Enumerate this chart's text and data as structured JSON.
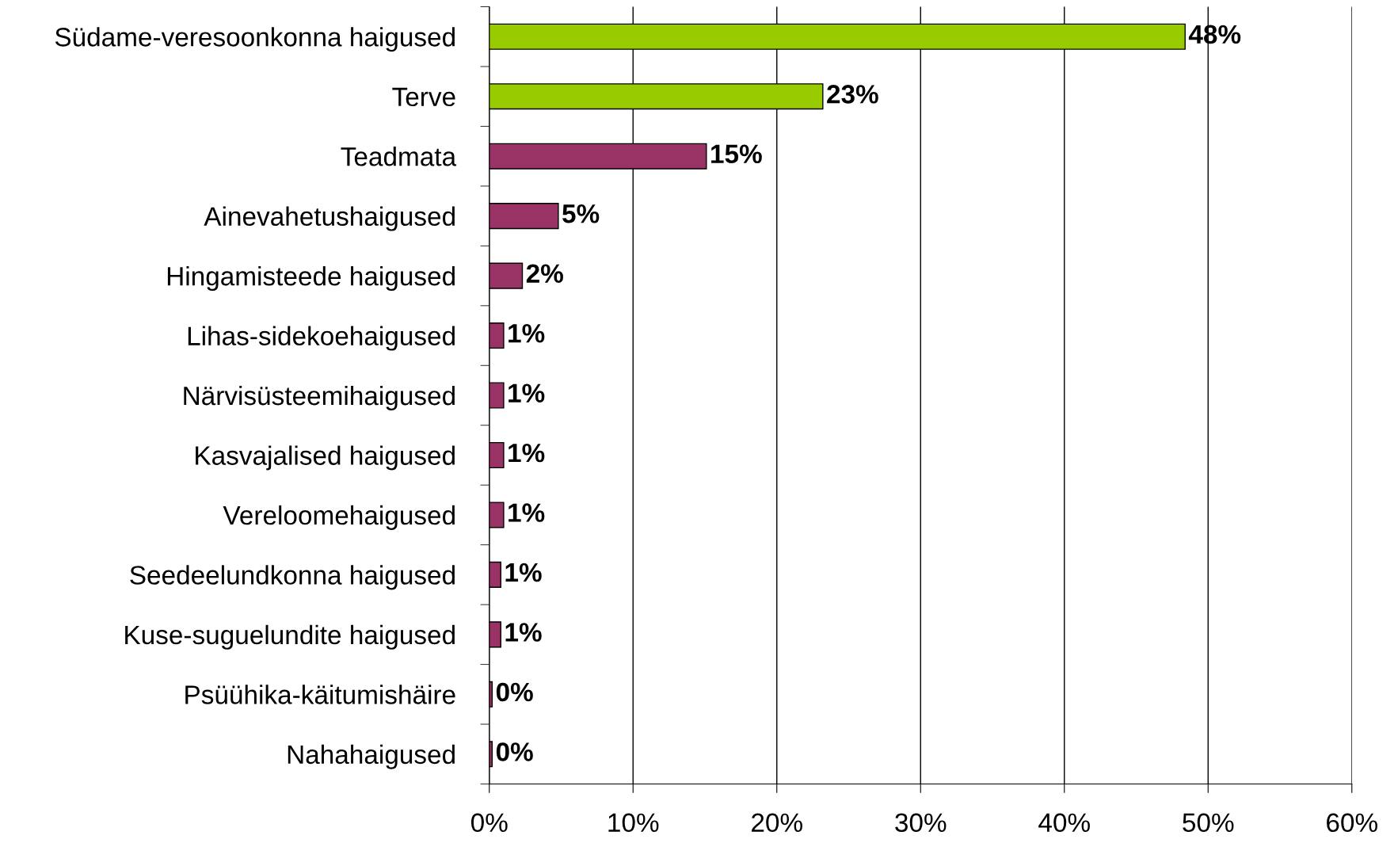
{
  "chart_data": {
    "type": "bar",
    "orientation": "horizontal",
    "categories": [
      "Südame-veresoonkonna haigused",
      "Terve",
      "Teadmata",
      "Ainevahetushaigused",
      "Hingamisteede haigused",
      "Lihas-sidekoehaigused",
      "Närvisüsteemihaigused",
      "Kasvajalised haigused",
      "Vereloomehaigused",
      "Seedeelundkonna haigused",
      "Kuse-suguelundite haigused",
      "Psüühika-käitumishäire",
      "Nahahaigused"
    ],
    "values": [
      48.4,
      23.2,
      15.1,
      4.8,
      2.3,
      1.0,
      1.0,
      1.0,
      1.0,
      0.8,
      0.8,
      0.2,
      0.2
    ],
    "colors": [
      "#99cc00",
      "#99cc00",
      "#993366",
      "#993366",
      "#993366",
      "#993366",
      "#993366",
      "#993366",
      "#993366",
      "#993366",
      "#993366",
      "#993366",
      "#993366"
    ],
    "value_labels": [
      "48%",
      "23%",
      "15%",
      "5%",
      "2%",
      "1%",
      "1%",
      "1%",
      "1%",
      "1%",
      "1%",
      "0%",
      "0%"
    ],
    "xlim": [
      0,
      60
    ],
    "xticks": [
      {
        "value": 0,
        "label": "0%"
      },
      {
        "value": 10,
        "label": "10%"
      },
      {
        "value": 20,
        "label": "20%"
      },
      {
        "value": 30,
        "label": "30%"
      },
      {
        "value": 40,
        "label": "40%"
      },
      {
        "value": 50,
        "label": "50%"
      },
      {
        "value": 60,
        "label": "60%"
      }
    ],
    "grid": "x",
    "legend": false
  }
}
